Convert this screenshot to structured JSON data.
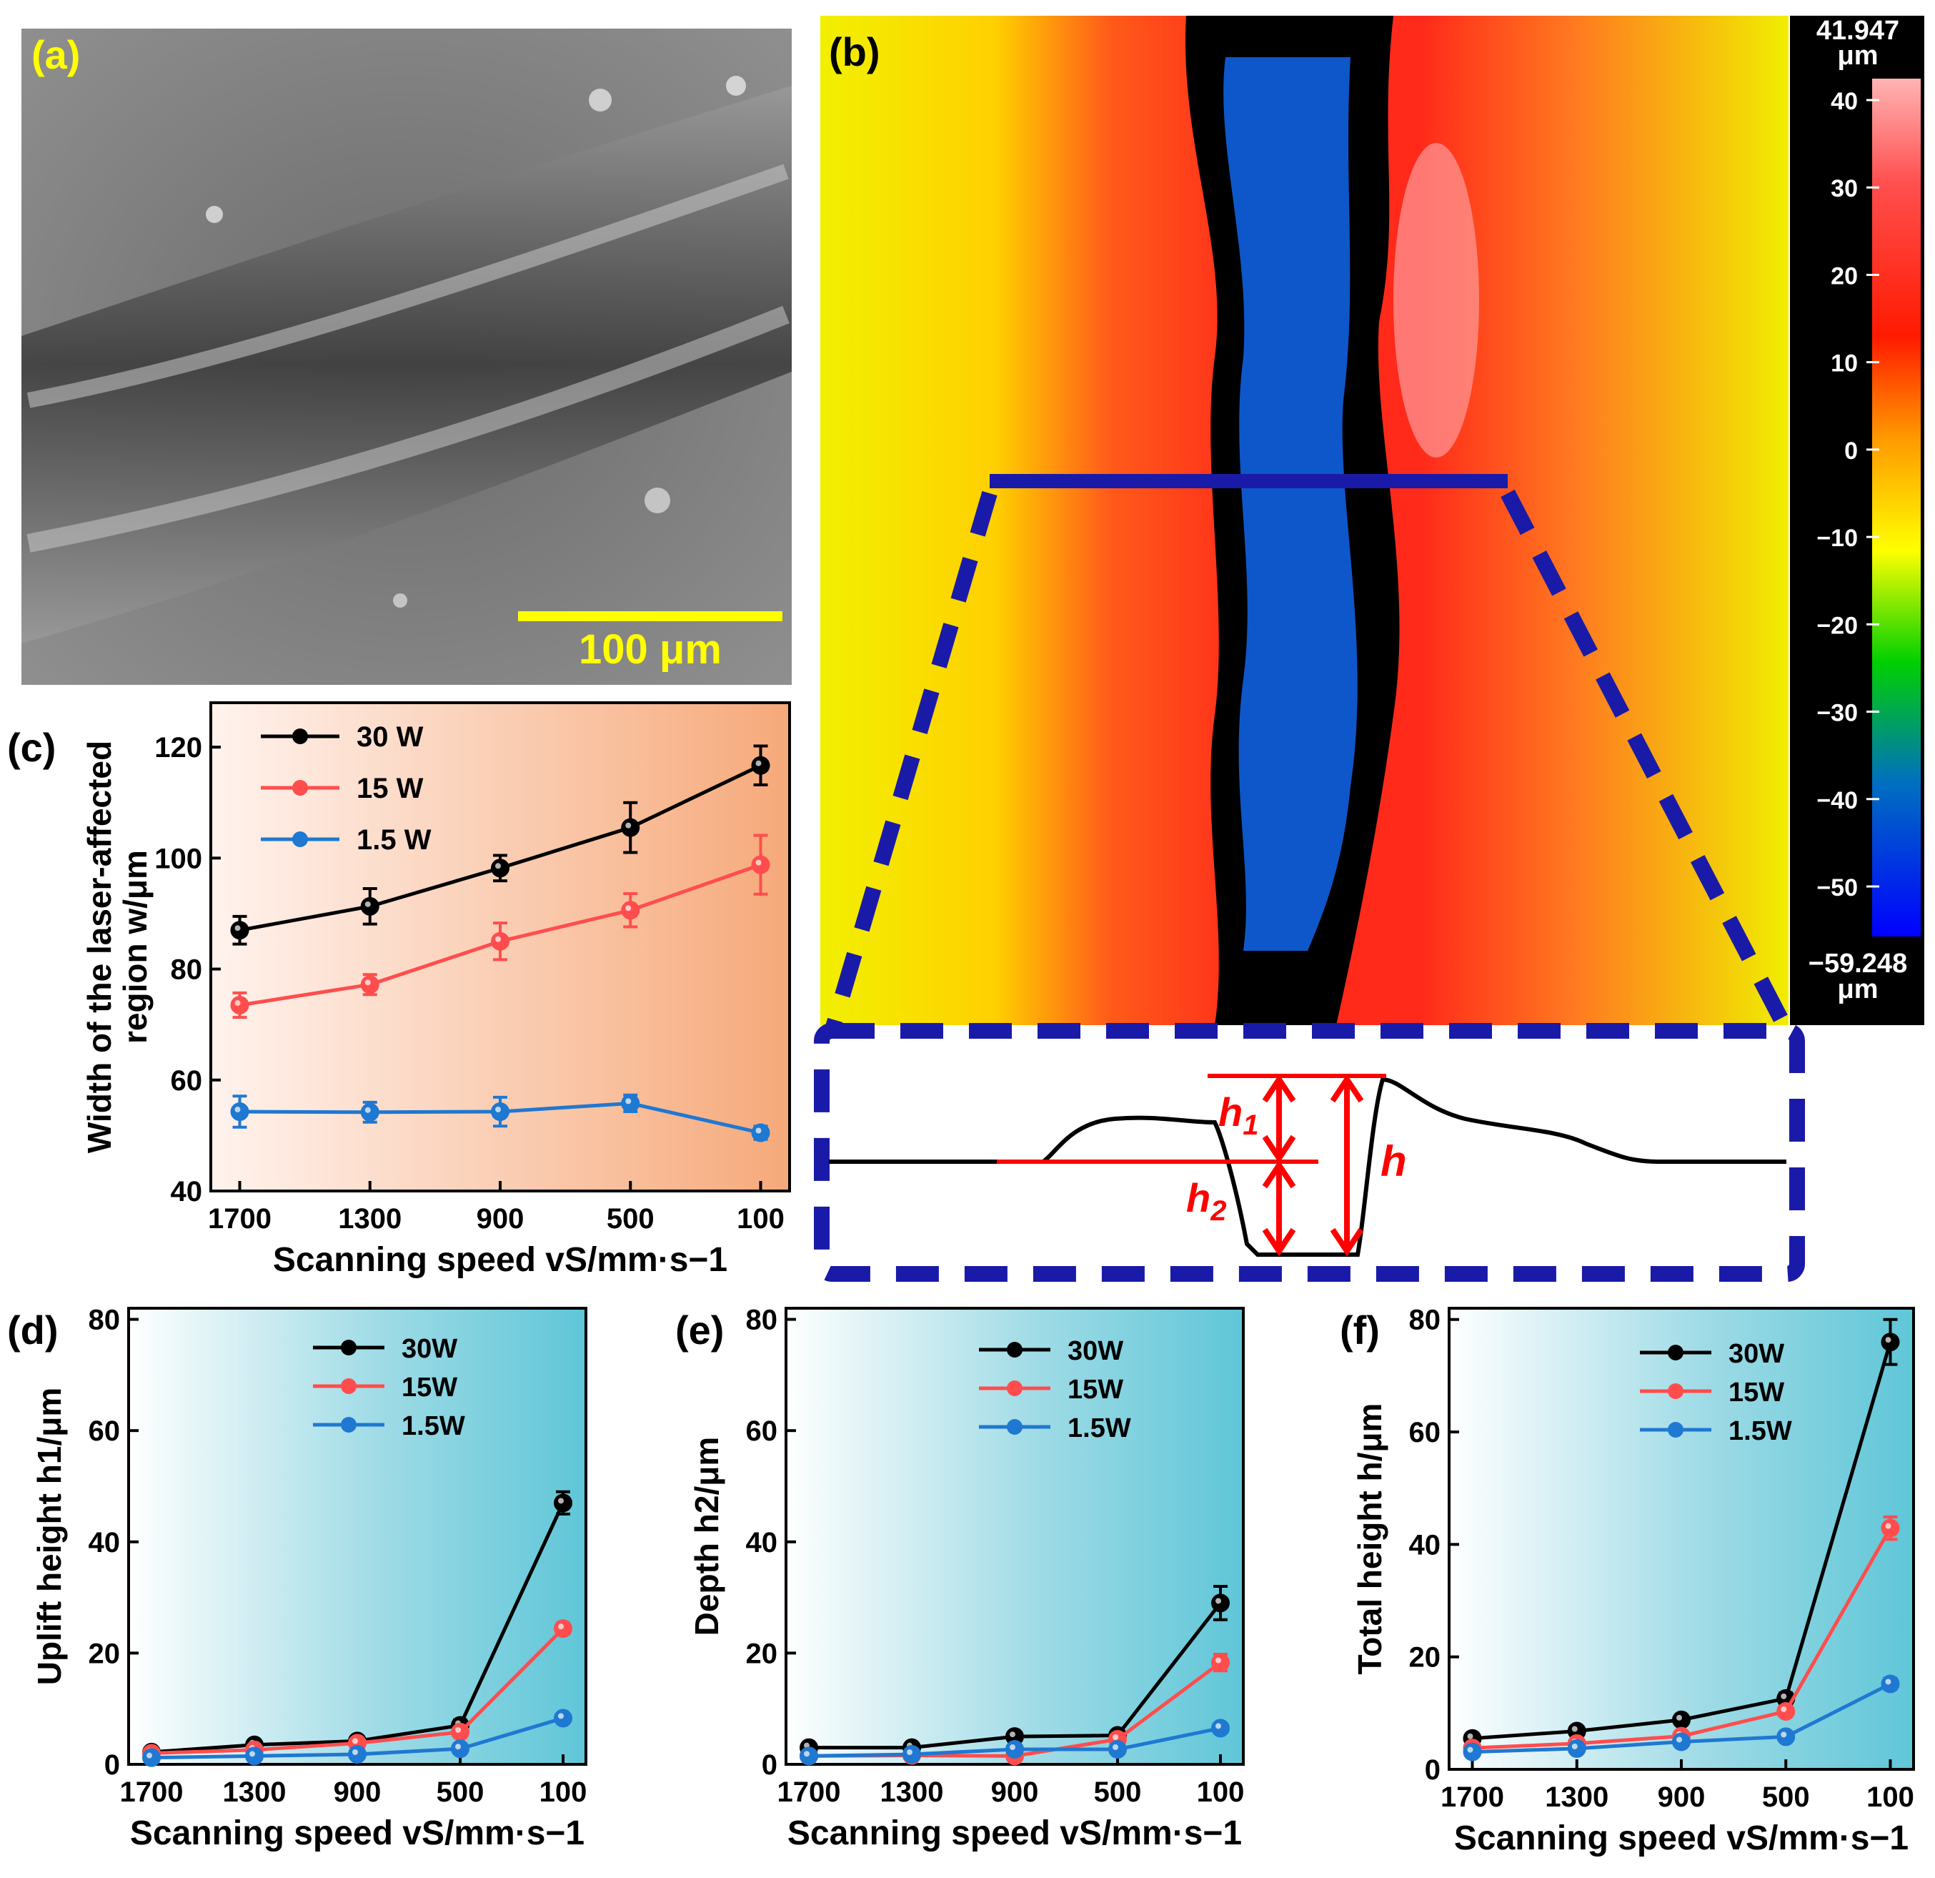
{
  "panels": {
    "a": {
      "label": "(a)",
      "scalebar": "100 μm"
    },
    "b": {
      "label": "(b)",
      "colorbar": {
        "max_label": "41.947",
        "min_label": "−59.248",
        "unit": "μm",
        "ticks": [
          "40",
          "30",
          "20",
          "10",
          "0",
          "−10",
          "−20",
          "−30",
          "−40",
          "−50"
        ]
      },
      "profile": {
        "h1": "h",
        "h1_sub": "1",
        "h2": "h",
        "h2_sub": "2",
        "h": "h"
      }
    },
    "c": {
      "label": "(c)"
    },
    "d": {
      "label": "(d)"
    },
    "e": {
      "label": "(e)"
    },
    "f": {
      "label": "(f)"
    }
  },
  "colors": {
    "s30": "#000000",
    "s15": "#ff4d4d",
    "s1_5": "#1f78d1",
    "scalebar": "#ffff00",
    "bracket": "#1a1aa8",
    "profile_marker": "#ff0000"
  },
  "chart_data": [
    {
      "id": "c",
      "type": "line",
      "categories": [
        "1700",
        "1300",
        "900",
        "500",
        "100"
      ],
      "ylim": [
        40,
        128
      ],
      "yticks": [
        "40",
        "60",
        "80",
        "100",
        "120"
      ],
      "ylabel_line1": "Width of the laser-affected",
      "ylabel_line2": "region w/μm",
      "xlabel": "Scanning speed  vS/mm·s−1",
      "legend": [
        "30 W",
        "15 W",
        "1.5 W"
      ],
      "series": [
        {
          "name": "30 W",
          "values": [
            87,
            91.3,
            98.2,
            105.5,
            116.7
          ],
          "err": [
            2.5,
            3.2,
            2.3,
            4.5,
            3.5
          ]
        },
        {
          "name": "15 W",
          "values": [
            73.5,
            77.2,
            85,
            90.6,
            98.8
          ],
          "err": [
            2.2,
            1.8,
            3.3,
            3.0,
            5.3
          ]
        },
        {
          "name": "1.5 W",
          "values": [
            54.3,
            54.2,
            54.3,
            55.8,
            50.5
          ],
          "err": [
            2.8,
            1.8,
            2.6,
            1.5,
            1.2
          ]
        }
      ]
    },
    {
      "id": "d",
      "type": "line",
      "categories": [
        "1700",
        "1300",
        "900",
        "500",
        "100"
      ],
      "ylim": [
        0,
        82
      ],
      "yticks": [
        "0",
        "20",
        "40",
        "60",
        "80"
      ],
      "ylabel": "Uplift height h1/μm",
      "xlabel": "Scanning speed vS/mm·s−1",
      "legend": [
        "30W",
        "15W",
        "1.5W"
      ],
      "series": [
        {
          "name": "30W",
          "values": [
            2.2,
            3.5,
            4.2,
            7,
            47
          ],
          "err": [
            0.4,
            0.5,
            0.6,
            1.0,
            2.0
          ]
        },
        {
          "name": "15W",
          "values": [
            2,
            2.6,
            3.8,
            5.8,
            24.4
          ],
          "err": [
            0.4,
            0.4,
            0.5,
            0.8,
            1.0
          ]
        },
        {
          "name": "1.5W",
          "values": [
            1.2,
            1.5,
            1.8,
            2.8,
            8.3
          ],
          "err": [
            0.3,
            0.3,
            0.3,
            0.5,
            0.8
          ]
        }
      ]
    },
    {
      "id": "e",
      "type": "line",
      "categories": [
        "1700",
        "1300",
        "900",
        "500",
        "100"
      ],
      "ylim": [
        0,
        82
      ],
      "yticks": [
        "0",
        "20",
        "40",
        "60",
        "80"
      ],
      "ylabel": "Depth h2/μm",
      "xlabel": "Scanning speed vS/mm·s−1",
      "legend": [
        "30W",
        "15W",
        "1.5W"
      ],
      "series": [
        {
          "name": "30W",
          "values": [
            3,
            3,
            5,
            5.2,
            29
          ],
          "err": [
            0.5,
            0.5,
            0.6,
            0.6,
            3.0
          ]
        },
        {
          "name": "15W",
          "values": [
            1.5,
            1.6,
            1.5,
            4.5,
            18.3
          ],
          "err": [
            0.3,
            0.3,
            0.3,
            0.6,
            1.5
          ]
        },
        {
          "name": "1.5W",
          "values": [
            1.5,
            1.8,
            2.7,
            2.7,
            6.5
          ],
          "err": [
            0.3,
            0.3,
            0.4,
            0.4,
            0.8
          ]
        }
      ]
    },
    {
      "id": "f",
      "type": "line",
      "categories": [
        "1700",
        "1300",
        "900",
        "500",
        "100"
      ],
      "ylim": [
        0,
        82
      ],
      "yticks": [
        "0",
        "20",
        "40",
        "60",
        "80"
      ],
      "ylabel": "Total height h/μm",
      "xlabel": "Scanning speed vS/mm·s−1",
      "legend": [
        "30W",
        "15W",
        "1.5W"
      ],
      "series": [
        {
          "name": "30W",
          "values": [
            5.5,
            6.8,
            8.8,
            12.6,
            76
          ],
          "err": [
            0.6,
            0.7,
            0.8,
            1.0,
            4.0
          ]
        },
        {
          "name": "15W",
          "values": [
            3.8,
            4.6,
            5.9,
            10.3,
            42.9
          ],
          "err": [
            0.5,
            0.5,
            0.6,
            0.9,
            2.0
          ]
        },
        {
          "name": "1.5W",
          "values": [
            3.1,
            3.7,
            4.9,
            5.8,
            15.2
          ],
          "err": [
            0.4,
            0.4,
            0.5,
            0.5,
            1.0
          ]
        }
      ]
    }
  ]
}
